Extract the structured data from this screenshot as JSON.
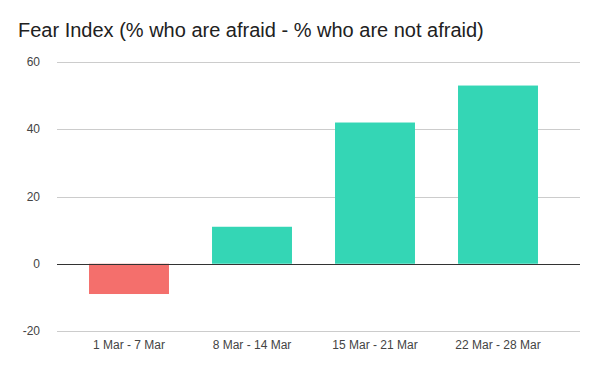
{
  "chart_data": {
    "type": "bar",
    "title": "Fear Index (% who are afraid - % who are not afraid)",
    "categories": [
      "1 Mar - 7 Mar",
      "8 Mar - 14 Mar",
      "15 Mar - 21 Mar",
      "22 Mar - 28 Mar"
    ],
    "values": [
      -9,
      11,
      42,
      53
    ],
    "colors": [
      "#f46f6c",
      "#34d6b5",
      "#34d6b5",
      "#34d6b5"
    ],
    "ylim": [
      -20,
      60
    ],
    "yticks": [
      -20,
      0,
      20,
      40,
      60
    ],
    "grid": true
  }
}
